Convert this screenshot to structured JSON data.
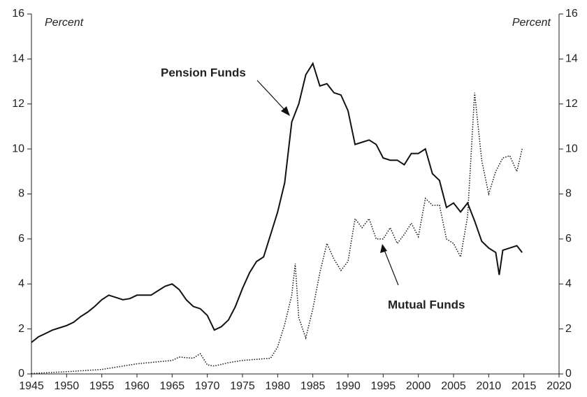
{
  "chart_data": {
    "type": "line",
    "y_label": "Percent",
    "y2_label": "Percent",
    "annotations": [
      "Pension Funds",
      "Mutual Funds"
    ],
    "xlim": [
      1945,
      2020
    ],
    "xticks": [
      1945,
      1950,
      1955,
      1960,
      1965,
      1970,
      1975,
      1980,
      1985,
      1990,
      1995,
      2000,
      2005,
      2010,
      2015,
      2020
    ],
    "ylim": [
      0,
      16
    ],
    "yticks": [
      0,
      2,
      4,
      6,
      8,
      10,
      12,
      14,
      16
    ],
    "y2lim": [
      0,
      16
    ],
    "y2ticks": [
      0,
      2,
      4,
      6,
      8,
      10,
      12,
      14,
      16
    ],
    "series": [
      {
        "name": "Pension Funds",
        "color": "#111111",
        "style": "solid",
        "x": [
          1945,
          1946,
          1947,
          1948,
          1949,
          1950,
          1951,
          1952,
          1953,
          1954,
          1955,
          1956,
          1957,
          1958,
          1959,
          1960,
          1961,
          1962,
          1963,
          1964,
          1965,
          1966,
          1967,
          1968,
          1969,
          1970,
          1971,
          1972,
          1973,
          1974,
          1975,
          1976,
          1977,
          1978,
          1979,
          1980,
          1981,
          1982,
          1983,
          1984,
          1985,
          1986,
          1987,
          1988,
          1989,
          1990,
          1991,
          1992,
          1993,
          1994,
          1995,
          1996,
          1997,
          1998,
          1999,
          2000,
          2001,
          2002,
          2003,
          2004,
          2005,
          2006,
          2007,
          2008,
          2009,
          2010,
          2011,
          2011.5,
          2012,
          2013,
          2014,
          2014.75
        ],
        "values": [
          1.4,
          1.65,
          1.8,
          1.95,
          2.05,
          2.15,
          2.3,
          2.55,
          2.75,
          3.0,
          3.3,
          3.5,
          3.4,
          3.3,
          3.35,
          3.5,
          3.5,
          3.5,
          3.7,
          3.9,
          4.0,
          3.75,
          3.3,
          3.0,
          2.9,
          2.6,
          1.95,
          2.1,
          2.4,
          3.0,
          3.8,
          4.5,
          5.0,
          5.2,
          6.2,
          7.2,
          8.5,
          11.2,
          12.0,
          13.3,
          13.8,
          12.8,
          12.9,
          12.5,
          12.4,
          11.7,
          10.2,
          10.3,
          10.4,
          10.2,
          9.6,
          9.5,
          9.5,
          9.3,
          9.8,
          9.8,
          10.0,
          8.9,
          8.6,
          7.4,
          7.6,
          7.2,
          7.6,
          6.8,
          5.9,
          5.6,
          5.4,
          4.4,
          5.5,
          5.6,
          5.7,
          5.4
        ]
      },
      {
        "name": "Mutual Funds",
        "color": "#111111",
        "style": "dotted",
        "x": [
          1945,
          1950,
          1955,
          1960,
          1965,
          1966,
          1968,
          1969,
          1970,
          1971,
          1973,
          1975,
          1977,
          1979,
          1980,
          1981,
          1982,
          1982.5,
          1983,
          1984,
          1985,
          1986,
          1987,
          1988,
          1989,
          1990,
          1991,
          1992,
          1993,
          1994,
          1995,
          1996,
          1997,
          1998,
          1999,
          2000,
          2001,
          2002,
          2003,
          2004,
          2005,
          2006,
          2007,
          2008,
          2009,
          2010,
          2011,
          2012,
          2013,
          2014,
          2014.75
        ],
        "values": [
          0.02,
          0.1,
          0.2,
          0.45,
          0.6,
          0.75,
          0.7,
          0.9,
          0.4,
          0.35,
          0.5,
          0.6,
          0.65,
          0.7,
          1.2,
          2.2,
          3.5,
          4.9,
          2.5,
          1.6,
          2.9,
          4.5,
          5.8,
          5.1,
          4.6,
          5.0,
          6.9,
          6.5,
          6.9,
          6.0,
          6.0,
          6.5,
          5.8,
          6.2,
          6.7,
          6.1,
          7.8,
          7.5,
          7.5,
          6.0,
          5.8,
          5.2,
          7.0,
          12.5,
          9.5,
          8.0,
          9.0,
          9.6,
          9.7,
          9.0,
          10.0
        ]
      }
    ]
  }
}
